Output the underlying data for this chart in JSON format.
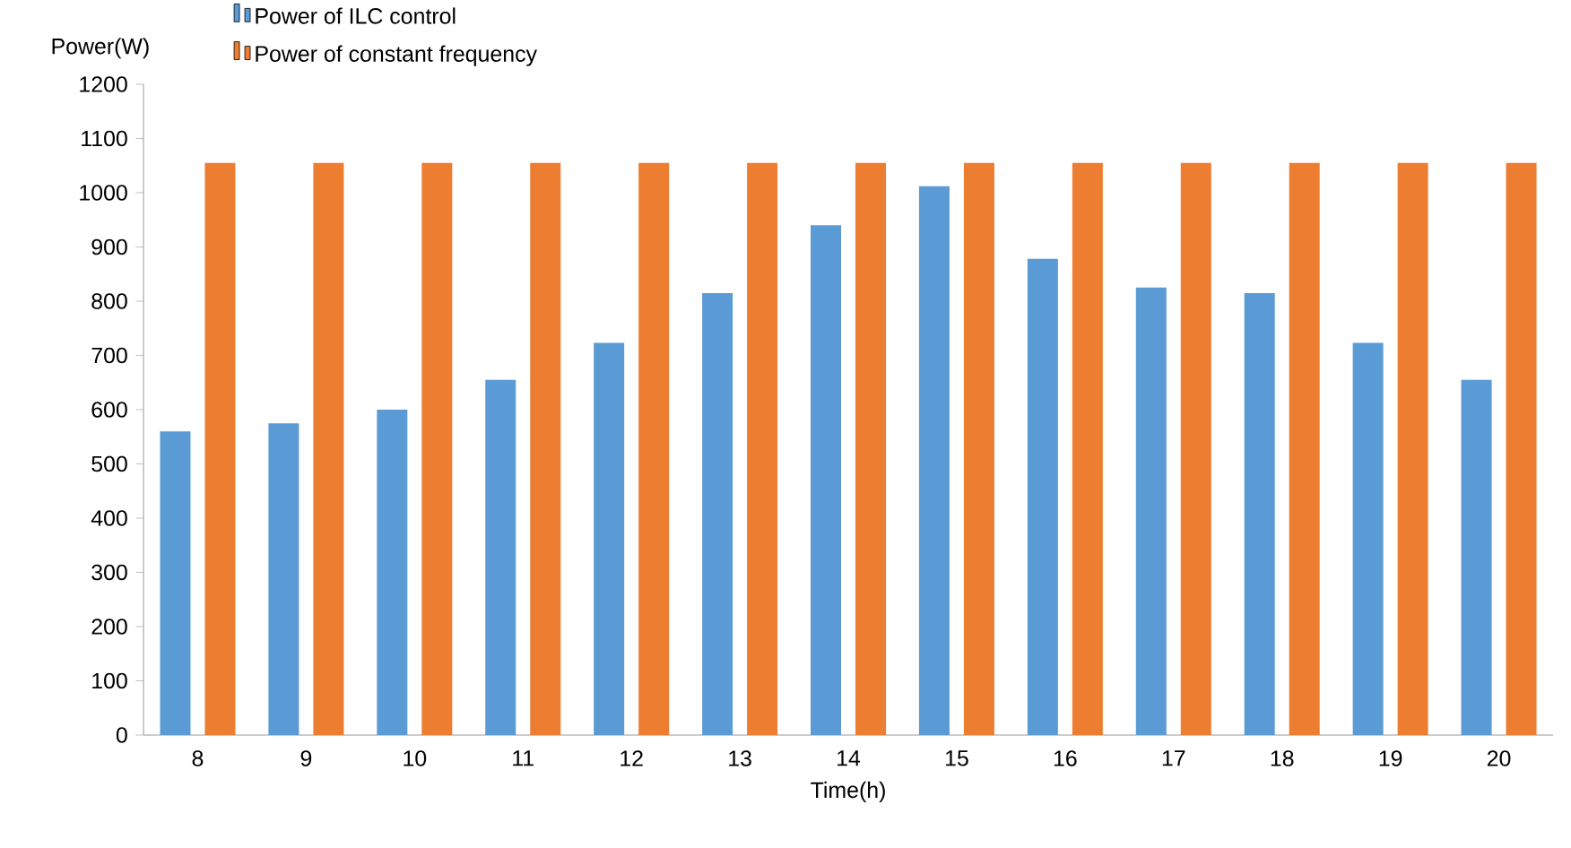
{
  "chart_data": {
    "type": "bar",
    "xlabel": "Time(h)",
    "ylabel": "Power(W)",
    "categories": [
      "8",
      "9",
      "10",
      "11",
      "12",
      "13",
      "14",
      "15",
      "16",
      "17",
      "18",
      "19",
      "20"
    ],
    "series": [
      {
        "name": "Power of ILC control",
        "color": "#5b9bd5",
        "values": [
          560,
          575,
          600,
          655,
          723,
          815,
          940,
          1012,
          878,
          825,
          815,
          723,
          655
        ]
      },
      {
        "name": "Power of constant frequency",
        "color": "#ed7d31",
        "values": [
          1055,
          1055,
          1055,
          1055,
          1055,
          1055,
          1055,
          1055,
          1055,
          1055,
          1055,
          1055,
          1055
        ]
      }
    ],
    "ylim": [
      0,
      1200
    ],
    "yticks": [
      0,
      100,
      200,
      300,
      400,
      500,
      600,
      700,
      800,
      900,
      1000,
      1100,
      1200
    ],
    "legend": "top left"
  }
}
